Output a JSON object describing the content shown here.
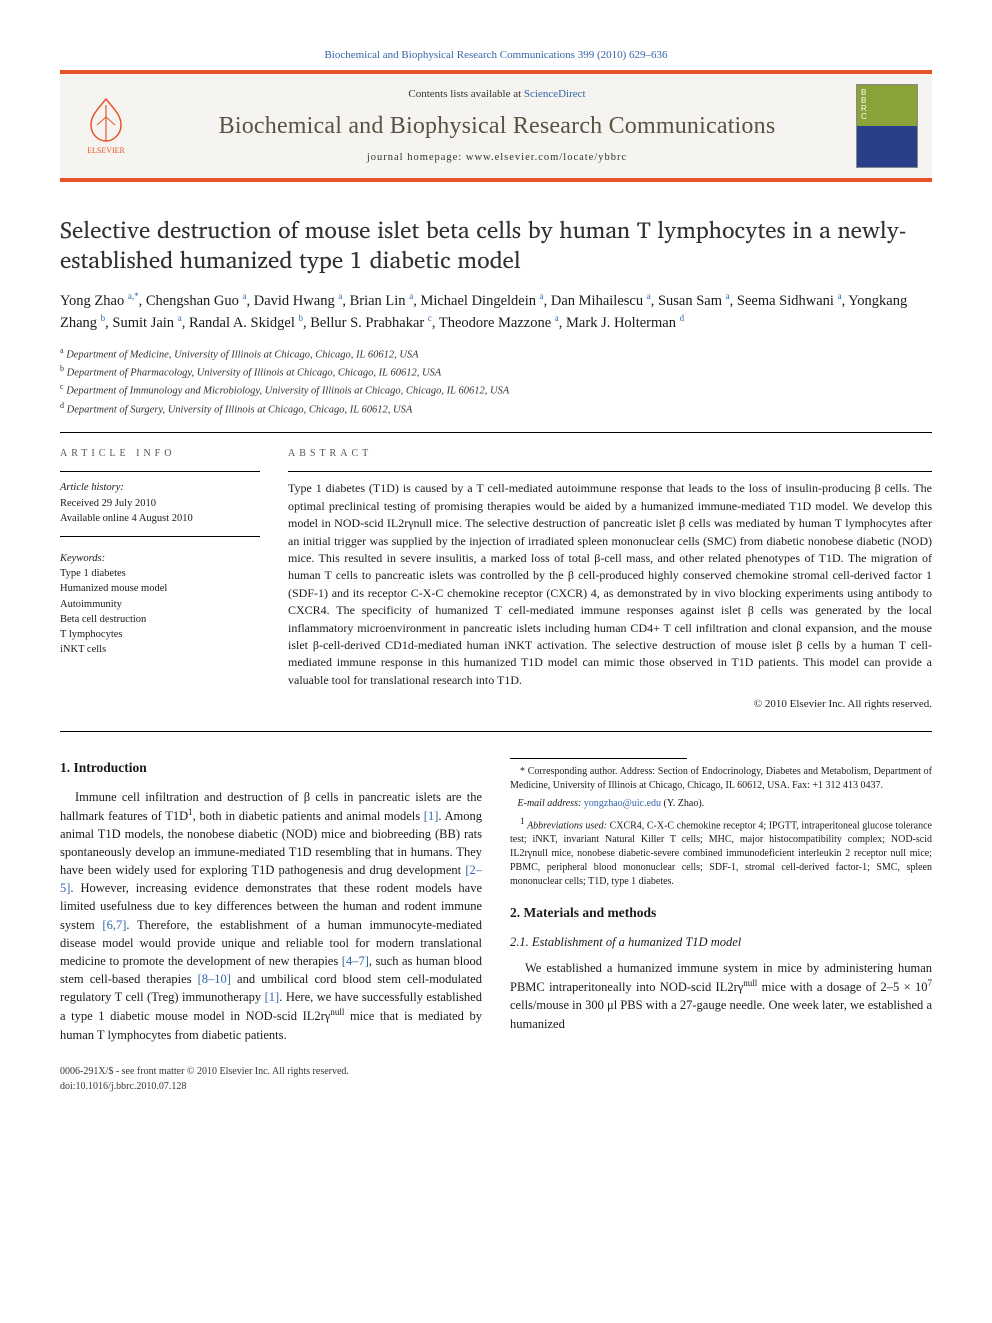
{
  "header": {
    "journal_ref": "Biochemical and Biophysical Research Communications 399 (2010) 629–636"
  },
  "banner": {
    "sciencedirect_prefix": "Contents lists available at ",
    "sciencedirect_label": "ScienceDirect",
    "journal_title": "Biochemical and Biophysical Research Communications",
    "homepage_prefix": "journal homepage: ",
    "homepage_url": "www.elsevier.com/locate/ybbrc",
    "publisher_name": "ELSEVIER",
    "colors": {
      "accent": "#e8542a",
      "link": "#3366aa",
      "title": "#585342",
      "banner_bg": "#f5f4f0"
    }
  },
  "article": {
    "title": "Selective destruction of mouse islet beta cells by human T lymphocytes in a newly-established humanized type 1 diabetic model",
    "authors_html": "Yong Zhao <sup>a,*</sup>, Chengshan Guo <sup>a</sup>, David Hwang <sup>a</sup>, Brian Lin <sup>a</sup>, Michael Dingeldein <sup>a</sup>, Dan Mihailescu <sup>a</sup>, Susan Sam <sup>a</sup>, Seema Sidhwani <sup>a</sup>, Yongkang Zhang <sup>b</sup>, Sumit Jain <sup>a</sup>, Randal A. Skidgel <sup>b</sup>, Bellur S. Prabhakar <sup>c</sup>, Theodore Mazzone <sup>a</sup>, Mark J. Holterman <sup>d</sup>",
    "affiliations": [
      {
        "sup": "a",
        "text": "Department of Medicine, University of Illinois at Chicago, Chicago, IL 60612, USA"
      },
      {
        "sup": "b",
        "text": "Department of Pharmacology, University of Illinois at Chicago, Chicago, IL 60612, USA"
      },
      {
        "sup": "c",
        "text": "Department of Immunology and Microbiology, University of Illinois at Chicago, Chicago, IL 60612, USA"
      },
      {
        "sup": "d",
        "text": "Department of Surgery, University of Illinois at Chicago, Chicago, IL 60612, USA"
      }
    ]
  },
  "info": {
    "section_label": "article info",
    "history_label": "Article history:",
    "received": "Received 29 July 2010",
    "online": "Available online 4 August 2010",
    "keywords_label": "Keywords:",
    "keywords": [
      "Type 1 diabetes",
      "Humanized mouse model",
      "Autoimmunity",
      "Beta cell destruction",
      "T lymphocytes",
      "iNKT cells"
    ]
  },
  "abstract": {
    "section_label": "abstract",
    "text": "Type 1 diabetes (T1D) is caused by a T cell-mediated autoimmune response that leads to the loss of insulin-producing β cells. The optimal preclinical testing of promising therapies would be aided by a humanized immune-mediated T1D model. We develop this model in NOD-scid IL2rγnull mice. The selective destruction of pancreatic islet β cells was mediated by human T lymphocytes after an initial trigger was supplied by the injection of irradiated spleen mononuclear cells (SMC) from diabetic nonobese diabetic (NOD) mice. This resulted in severe insulitis, a marked loss of total β-cell mass, and other related phenotypes of T1D. The migration of human T cells to pancreatic islets was controlled by the β cell-produced highly conserved chemokine stromal cell-derived factor 1 (SDF-1) and its receptor C-X-C chemokine receptor (CXCR) 4, as demonstrated by in vivo blocking experiments using antibody to CXCR4. The specificity of humanized T cell-mediated immune responses against islet β cells was generated by the local inflammatory microenvironment in pancreatic islets including human CD4+ T cell infiltration and clonal expansion, and the mouse islet β-cell-derived CD1d-mediated human iNKT activation. The selective destruction of mouse islet β cells by a human T cell-mediated immune response in this humanized T1D model can mimic those observed in T1D patients. This model can provide a valuable tool for translational research into T1D.",
    "copyright": "© 2010 Elsevier Inc. All rights reserved."
  },
  "body": {
    "intro_heading": "1. Introduction",
    "intro_p1_pre": "Immune cell infiltration and destruction of β cells in pancreatic islets are the hallmark features of T1D",
    "intro_p1_sup": "1",
    "intro_p1_mid": ", both in diabetic patients and animal models ",
    "intro_ref1": "[1]",
    "intro_p1_post": ". Among animal T1D models, the nonobese diabetic (NOD) mice and biobreeding (BB) rats spontaneously develop an immune-mediated T1D resembling that in humans. They have been widely used for exploring T1D pathogenesis and drug development ",
    "intro_ref2": "[2–5]",
    "intro_p1_tail_a": ". However, increasing evidence demonstrates that these rodent models have limited usefulness due to key differences between the human and rodent immune system ",
    "intro_ref3": "[6,7]",
    "intro_p1_tail_b": ". Therefore, the establishment of a human immunocyte-mediated disease model would provide unique and reliable tool for modern translational medicine to promote the development of new therapies ",
    "intro_ref4": "[4–7]",
    "intro_p1_tail_c": ", such as human blood stem cell-based therapies ",
    "intro_ref5": "[8–10]",
    "intro_p1_tail_d": " and umbilical cord blood stem cell-modulated regulatory T cell (Treg) immunotherapy ",
    "intro_ref6": "[1]",
    "intro_p1_tail_e": ". Here, we have successfully established a type 1 diabetic mouse model in NOD-scid IL2rγ",
    "intro_p1_tail_e_sup": "null",
    "intro_p1_tail_f": " mice that is mediated by human T lymphocytes from diabetic patients.",
    "methods_heading": "2. Materials and methods",
    "methods_sub1": "2.1. Establishment of a humanized T1D model",
    "methods_p1_a": "We established a humanized immune system in mice by administering human PBMC intraperitoneally into NOD-scid IL2rγ",
    "methods_p1_sup": "null",
    "methods_p1_b": " mice with a dosage of 2–5 × 10",
    "methods_p1_sup2": "7",
    "methods_p1_c": " cells/mouse in 300 μl PBS with a 27-gauge needle. One week later, we established a humanized"
  },
  "footnotes": {
    "corr": "* Corresponding author. Address: Section of Endocrinology, Diabetes and Metabolism, Department of Medicine, University of Illinois at Chicago, Chicago, IL 60612, USA. Fax: +1 312 413 0437.",
    "email_label": "E-mail address: ",
    "email": "yongzhao@uic.edu",
    "email_tail": " (Y. Zhao).",
    "abbr_label": "Abbreviations used:",
    "abbr": " CXCR4, C-X-C chemokine receptor 4; IPGTT, intraperitoneal glucose tolerance test; iNKT, invariant Natural Killer T cells; MHC, major histocompatibility complex; NOD-scid IL2rγnull mice, nonobese diabetic-severe combined immunodeficient interleukin 2 receptor null mice; PBMC, peripheral blood mononuclear cells; SDF-1, stromal cell-derived factor-1; SMC, spleen mononuclear cells; T1D, type 1 diabetes."
  },
  "footer": {
    "left": "0006-291X/$ - see front matter © 2010 Elsevier Inc. All rights reserved.",
    "doi": "doi:10.1016/j.bbrc.2010.07.128"
  }
}
